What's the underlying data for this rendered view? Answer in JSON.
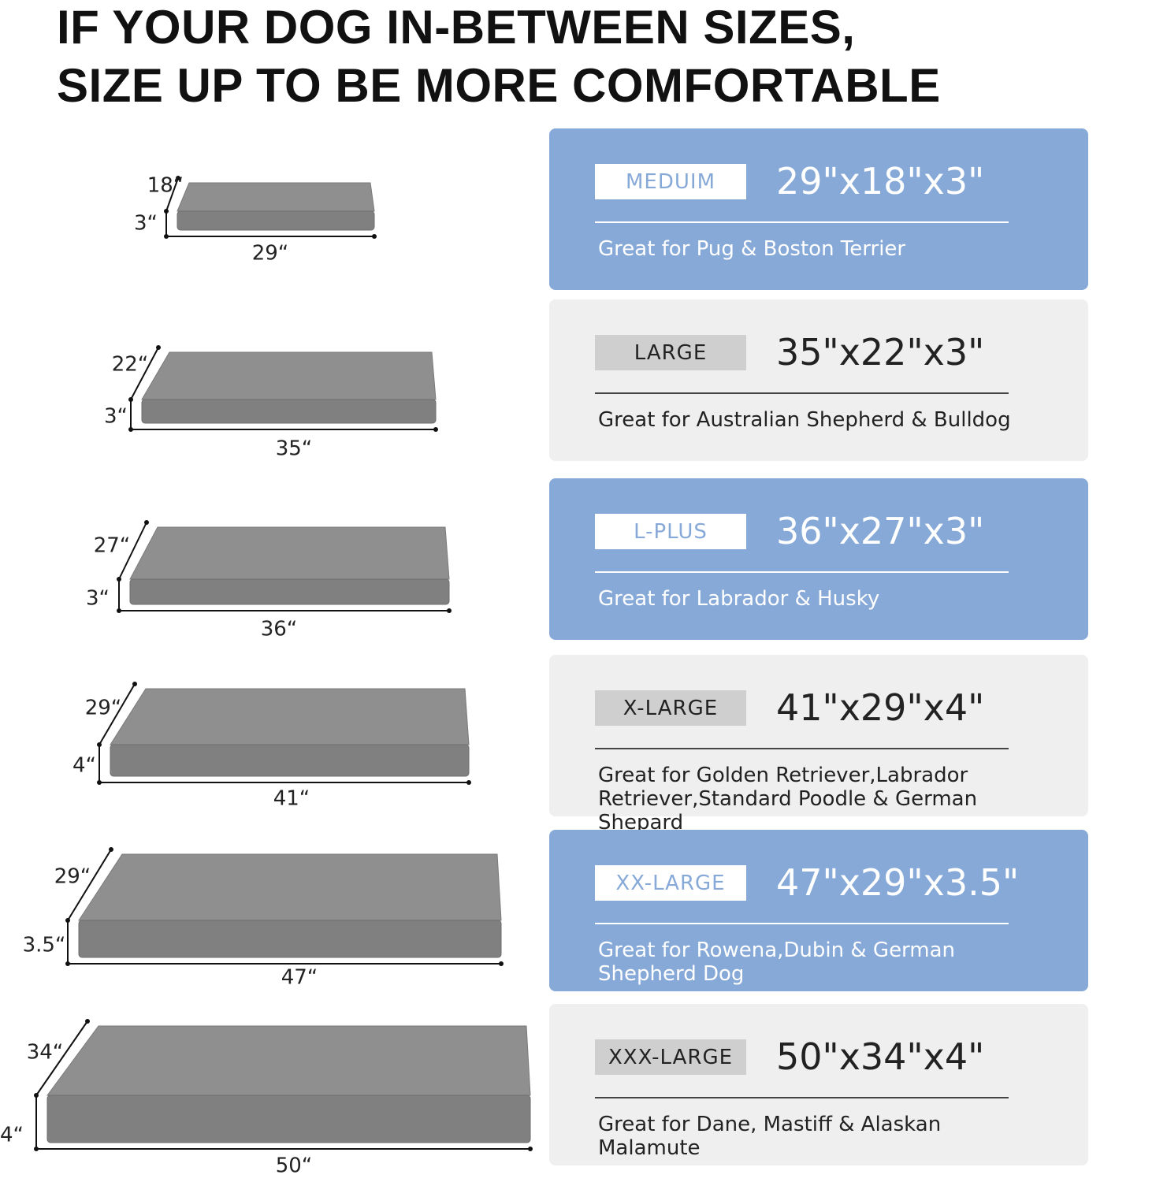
{
  "header": {
    "title_lines": [
      "IF YOUR DOG IN-BETWEEN SIZES,",
      "SIZE UP TO BE MORE COMFORTABLE"
    ]
  },
  "sizes": [
    {
      "name": "MEDUIM",
      "dimensions": "29\"x18\"x3\"",
      "description": "Great for Pug & Boston Terrier",
      "width": "29“",
      "depth": "18“",
      "height": "3“"
    },
    {
      "name": "LARGE",
      "dimensions": "35\"x22\"x3\"",
      "description": "Great for Australian Shepherd & Bulldog",
      "width": "35“",
      "depth": "22“",
      "height": "3“"
    },
    {
      "name": "L-PLUS",
      "dimensions": "36\"x27\"x3\"",
      "description": "Great for Labrador & Husky",
      "width": "36“",
      "depth": "27“",
      "height": "3“"
    },
    {
      "name": "X-LARGE",
      "dimensions": "41\"x29\"x4\"",
      "description": "Great for Golden Retriever,Labrador Retriever,Standard Poodle & German Shepard",
      "width": "41“",
      "depth": "29“",
      "height": "4“"
    },
    {
      "name": "XX-LARGE",
      "dimensions": "47\"x29\"x3.5\"",
      "description": "Great for Rowena,Dubin & German Shepherd Dog",
      "width": "47“",
      "depth": "29“",
      "height": "3.5“"
    },
    {
      "name": "XXX-LARGE",
      "dimensions": "50\"x34\"x4\"",
      "description": "Great for Dane, Mastiff & Alaskan Malamute",
      "width": "50“",
      "depth": "34“",
      "height": "4“"
    }
  ]
}
